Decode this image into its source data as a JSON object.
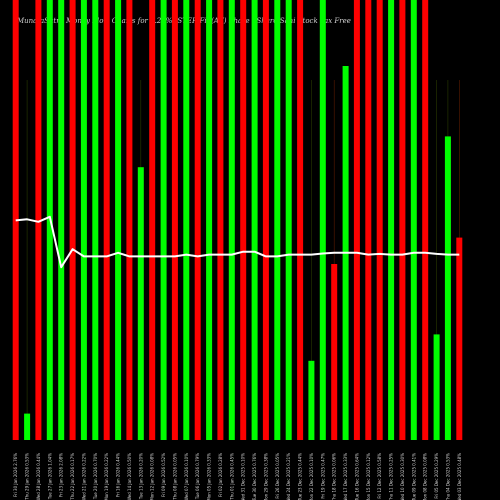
{
  "chart_data": {
    "type": "bar",
    "title": "MunafaSutra Money Flow Charts for 7.25%ASTER Fin(AF) Share | Share/Sahi Stock Tax Free",
    "xlabel": "",
    "ylabel": "",
    "categories": [
      "Fri 30 Jan 2026 2.76%",
      "Thu 29 Jan 2026 0.53%",
      "Wed 28 Jan 2026 0.44%",
      "Tue 27 Jan 2026 1.04%",
      "Fri 23 Jan 2026 2.08%",
      "Thu 22 Jan 2026 0.17%",
      "Wed 21 Jan 2026 0.22%",
      "Tue 20 Jan 2026 0.70%",
      "Mon 19 Jan 2026 0.22%",
      "Fri 16 Jan 2026 0.44%",
      "Wed 14 Jan 2026 0.50%",
      "Tue 13 Jan 2026 0.20%",
      "Mon 12 Jan 2026 0.08%",
      "Fri 09 Jan 2026 0.52%",
      "Thu 08 Jan 2026 0.05%",
      "Wed 07 Jan 2026 0.10%",
      "Tue 06 Jan 2026 0.79%",
      "Mon 05 Jan 2026 0.33%",
      "Fri 02 Jan 2026 0.28%",
      "Thu 01 Jan 2026 0.45%",
      "Wed 31 Dec 2025 0.10%",
      "Tue 30 Dec 2025 0.76%",
      "Mon 29 Dec 2025 0.38%",
      "Fri 26 Dec 2025 0.05%",
      "Wed 24 Dec 2025 0.21%",
      "Tue 23 Dec 2025 0.44%",
      "Mon 22 Dec 2025 0.10%",
      "Fri 19 Dec 2025 0.47%",
      "Thu 18 Dec 2025 0.06%",
      "Wed 17 Dec 2025 0.33%",
      "Tue 16 Dec 2025 0.64%",
      "Mon 15 Dec 2025 0.12%",
      "Fri 12 Dec 2025 0.58%",
      "Thu 11 Dec 2025 0.25%",
      "Wed 10 Dec 2025 0.30%",
      "Tue 09 Dec 2025 0.41%",
      "Mon 08 Dec 2025 0.08%",
      "Fri 05 Dec 2025 0.29%",
      "Thu 04 Dec 2025 0.53%",
      "Wed 03 Dec 2025 0.48%"
    ],
    "series": [
      {
        "type": "bar",
        "values": [
          100,
          6,
          100,
          100,
          100,
          100,
          100,
          100,
          100,
          100,
          100,
          62,
          100,
          100,
          100,
          100,
          100,
          100,
          100,
          100,
          100,
          100,
          100,
          100,
          100,
          100,
          18,
          100,
          40,
          85,
          100,
          100,
          100,
          100,
          100,
          100,
          100,
          24,
          69,
          46
        ],
        "colors": [
          "#ff0000",
          "#00ff00",
          "#ff0000",
          "#00ff00",
          "#00ff00",
          "#ff0000",
          "#00ff00",
          "#00ff00",
          "#ff0000",
          "#00ff00",
          "#ff0000",
          "#00ff00",
          "#ff0000",
          "#00ff00",
          "#ff0000",
          "#00ff00",
          "#ff0000",
          "#00ff00",
          "#ff0000",
          "#00ff00",
          "#ff0000",
          "#00ff00",
          "#ff0000",
          "#00ff00",
          "#00ff00",
          "#ff0000",
          "#00ff00",
          "#00ff00",
          "#ff0000",
          "#00ff00",
          "#ff0000",
          "#ff0000",
          "#ff0000",
          "#00ff00",
          "#ff0000",
          "#00ff00",
          "#ff0000",
          "#00ff00",
          "#00ff00",
          "#ff0000"
        ]
      },
      {
        "type": "line",
        "color": "#ffffff",
        "values": [
          61,
          61.3,
          60.6,
          62,
          48,
          53,
          51,
          51,
          51,
          52,
          51,
          51,
          51,
          51,
          51,
          51.5,
          51,
          51.5,
          51.5,
          51.5,
          52.3,
          52.3,
          51,
          51,
          51.5,
          51.5,
          51.5,
          51.8,
          52,
          52,
          52,
          51.5,
          51.7,
          51.5,
          51.5,
          52,
          52,
          51.7,
          51.5,
          51.5
        ]
      }
    ],
    "ylim": [
      0,
      100
    ],
    "grid": false,
    "legend": "none",
    "background": "#000000"
  }
}
